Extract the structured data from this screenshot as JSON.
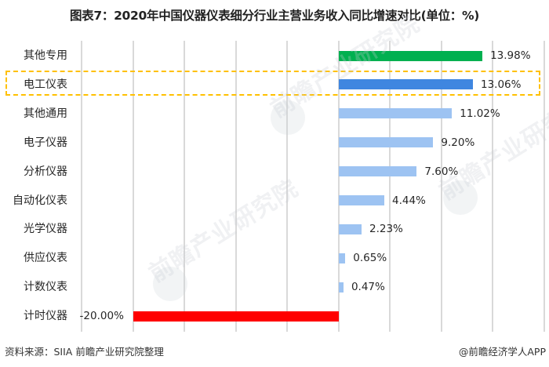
{
  "header": {
    "title": "图表7：2020年中国仪器仪表细分行业主营业务收入同比增速对比(单位：%)"
  },
  "footer": {
    "source": "资料来源：SIIA 前瞻产业研究院整理",
    "credit": "@前瞻经济学人APP"
  },
  "watermark": {
    "text": "前瞻产业研究院"
  },
  "colors": {
    "highlight_green": "#00B050",
    "highlight_blue": "#3F86E0",
    "default_bar": "#9DC3F2",
    "negative_bar": "#FF0000",
    "highlight_border": "#FFC000",
    "gridline": "#D9D9D9"
  },
  "chart_data": {
    "type": "bar",
    "orientation": "horizontal",
    "title": "图表7：2020年中国仪器仪表细分行业主营业务收入同比增速对比(单位：%)",
    "xlabel": "",
    "ylabel": "",
    "xlim": [
      -25,
      20
    ],
    "grid": true,
    "grid_step": 5,
    "legend": null,
    "highlighted_category": "电工仪表",
    "categories": [
      "其他专用",
      "电工仪表",
      "其他通用",
      "电子仪器",
      "分析仪器",
      "自动化仪表",
      "光学仪器",
      "供应仪表",
      "计数仪表",
      "计时仪器"
    ],
    "values": [
      13.98,
      13.06,
      11.02,
      9.2,
      7.6,
      4.44,
      2.23,
      0.65,
      0.47,
      -20.0
    ],
    "value_labels": [
      "13.98%",
      "13.06%",
      "11.02%",
      "9.20%",
      "7.60%",
      "4.44%",
      "2.23%",
      "0.65%",
      "0.47%",
      "-20.00%"
    ],
    "bar_colors": [
      "#00B050",
      "#3F86E0",
      "#9DC3F2",
      "#9DC3F2",
      "#9DC3F2",
      "#9DC3F2",
      "#9DC3F2",
      "#9DC3F2",
      "#9DC3F2",
      "#FF0000"
    ]
  }
}
